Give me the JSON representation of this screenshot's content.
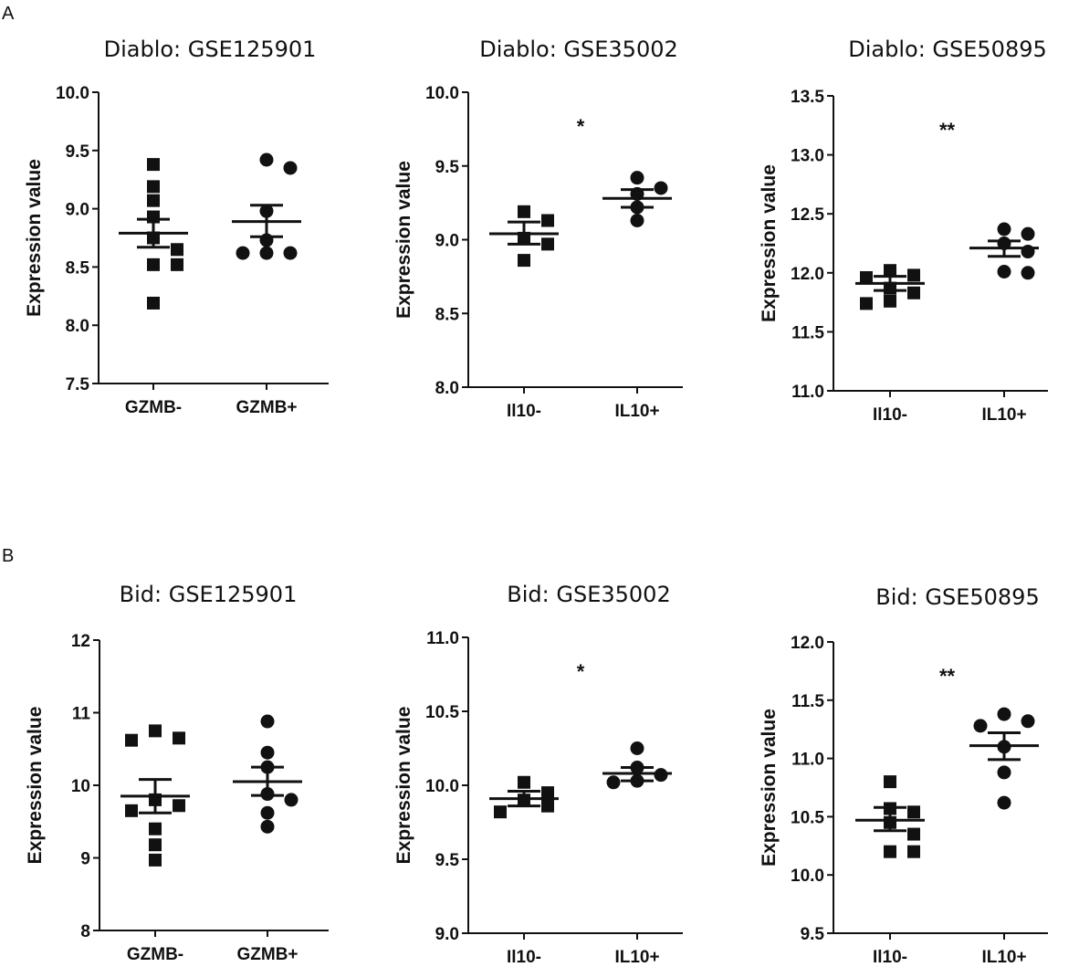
{
  "panels": {
    "a_label": "A",
    "b_label": "B"
  },
  "chart_data": [
    {
      "type": "scatter",
      "panel": "A",
      "title": "Diablo: GSE125901",
      "ylabel": "Expression value",
      "ylim": [
        7.5,
        10.0
      ],
      "yticks": [
        "7.5",
        "8.0",
        "8.5",
        "9.0",
        "9.5",
        "10.0"
      ],
      "categories": [
        "GZMB-",
        "GZMB+"
      ],
      "annotation": "",
      "series": [
        {
          "name": "GZMB-",
          "marker": "square",
          "mean": 8.79,
          "sem_low": 8.67,
          "sem_high": 8.91,
          "values": [
            9.38,
            9.19,
            9.07,
            8.93,
            8.75,
            8.65,
            8.52,
            8.52,
            8.19
          ]
        },
        {
          "name": "GZMB+",
          "marker": "circle",
          "mean": 8.89,
          "sem_low": 8.76,
          "sem_high": 9.03,
          "values": [
            9.42,
            9.35,
            8.98,
            8.73,
            8.62,
            8.62,
            8.62
          ]
        }
      ]
    },
    {
      "type": "scatter",
      "panel": "A",
      "title": "Diablo: GSE35002",
      "ylabel": "Expression value",
      "ylim": [
        8.0,
        10.0
      ],
      "yticks": [
        "8.0",
        "8.5",
        "9.0",
        "9.5",
        "10.0"
      ],
      "categories": [
        "Il10-",
        "IL10+"
      ],
      "annotation": "*",
      "series": [
        {
          "name": "Il10-",
          "marker": "square",
          "mean": 9.04,
          "sem_low": 8.97,
          "sem_high": 9.12,
          "values": [
            9.19,
            9.13,
            9.01,
            8.97,
            8.86
          ]
        },
        {
          "name": "IL10+",
          "marker": "circle",
          "mean": 9.28,
          "sem_low": 9.22,
          "sem_high": 9.34,
          "values": [
            9.42,
            9.35,
            9.31,
            9.22,
            9.13
          ]
        }
      ]
    },
    {
      "type": "scatter",
      "panel": "A",
      "title": "Diablo: GSE50895",
      "ylabel": "Expression value",
      "ylim": [
        11.0,
        13.5
      ],
      "yticks": [
        "11.0",
        "11.5",
        "12.0",
        "12.5",
        "13.0",
        "13.5"
      ],
      "categories": [
        "Il10-",
        "IL10+"
      ],
      "annotation": "**",
      "series": [
        {
          "name": "Il10-",
          "marker": "square",
          "mean": 11.91,
          "sem_low": 11.85,
          "sem_high": 11.97,
          "values": [
            12.02,
            11.98,
            11.96,
            11.87,
            11.83,
            11.76,
            11.74
          ]
        },
        {
          "name": "IL10+",
          "marker": "circle",
          "mean": 12.21,
          "sem_low": 12.14,
          "sem_high": 12.27,
          "values": [
            12.37,
            12.33,
            12.25,
            12.18,
            12.01,
            12.0
          ]
        }
      ]
    },
    {
      "type": "scatter",
      "panel": "B",
      "title": "Bid: GSE125901",
      "ylabel": "Expression value",
      "ylim": [
        8,
        12
      ],
      "yticks": [
        "8",
        "9",
        "10",
        "11",
        "12"
      ],
      "categories": [
        "GZMB-",
        "GZMB+"
      ],
      "annotation": "",
      "series": [
        {
          "name": "GZMB-",
          "marker": "square",
          "mean": 9.85,
          "sem_low": 9.62,
          "sem_high": 10.08,
          "values": [
            10.75,
            10.65,
            10.62,
            9.8,
            9.72,
            9.65,
            9.4,
            9.18,
            8.97
          ]
        },
        {
          "name": "GZMB+",
          "marker": "circle",
          "mean": 10.05,
          "sem_low": 9.86,
          "sem_high": 10.25,
          "values": [
            10.88,
            10.45,
            10.25,
            9.88,
            9.8,
            9.62,
            9.43
          ]
        }
      ]
    },
    {
      "type": "scatter",
      "panel": "B",
      "title": "Bid: GSE35002",
      "ylabel": "Expression value",
      "ylim": [
        9.0,
        11.0
      ],
      "yticks": [
        "9.0",
        "9.5",
        "10.0",
        "10.5",
        "11.0"
      ],
      "categories": [
        "Il10-",
        "IL10+"
      ],
      "annotation": "*",
      "series": [
        {
          "name": "Il10-",
          "marker": "square",
          "mean": 9.91,
          "sem_low": 9.86,
          "sem_high": 9.96,
          "values": [
            10.02,
            9.95,
            9.9,
            9.86,
            9.82
          ]
        },
        {
          "name": "IL10+",
          "marker": "circle",
          "mean": 10.08,
          "sem_low": 10.03,
          "sem_high": 10.12,
          "values": [
            10.25,
            10.12,
            10.07,
            10.03,
            10.02
          ]
        }
      ]
    },
    {
      "type": "scatter",
      "panel": "B",
      "title": "Bid: GSE50895",
      "ylabel": "Expression value",
      "ylim": [
        9.5,
        12.0
      ],
      "yticks": [
        "9.5",
        "10.0",
        "10.5",
        "11.0",
        "11.5",
        "12.0"
      ],
      "categories": [
        "Il10-",
        "IL10+"
      ],
      "annotation": "**",
      "series": [
        {
          "name": "Il10-",
          "marker": "square",
          "mean": 10.47,
          "sem_low": 10.38,
          "sem_high": 10.58,
          "values": [
            10.8,
            10.57,
            10.54,
            10.45,
            10.35,
            10.2,
            10.2
          ]
        },
        {
          "name": "IL10+",
          "marker": "circle",
          "mean": 11.11,
          "sem_low": 10.99,
          "sem_high": 11.22,
          "values": [
            11.38,
            11.32,
            11.28,
            11.1,
            10.88,
            10.62
          ]
        }
      ]
    }
  ]
}
